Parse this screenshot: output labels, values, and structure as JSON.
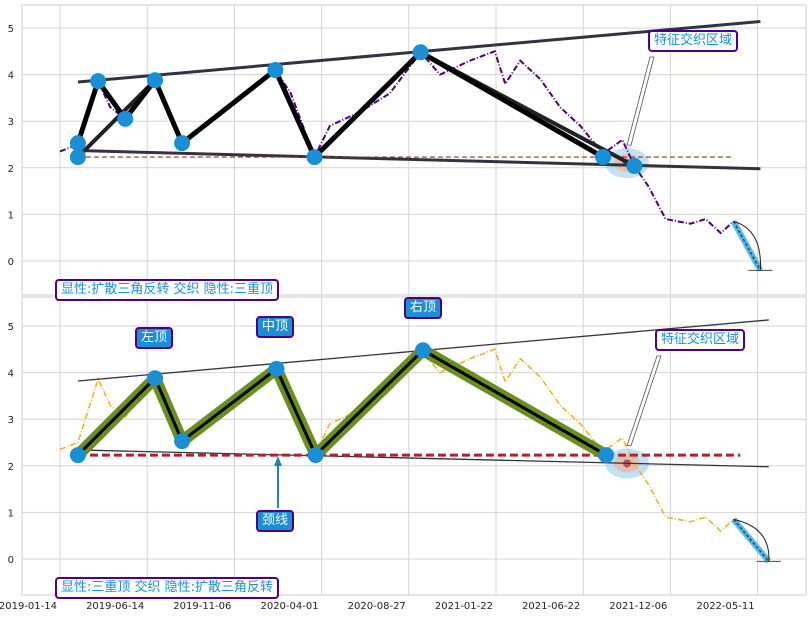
{
  "chart_data": [
    {
      "type": "line",
      "panel": "top",
      "ylim": [
        -0.2,
        5.5
      ],
      "yticks": [
        0,
        1,
        2,
        3,
        4,
        5
      ],
      "grid": true,
      "series_color": "#4b0082",
      "annotation_text": "显性:扩散三角反转 交织 隐性:三重顶",
      "zone_label": "特征交织区域",
      "price": [
        [
          "2019-01-14",
          2.35
        ],
        [
          "2019-02-14",
          2.5
        ],
        [
          "2019-03-21",
          3.86
        ],
        [
          "2019-04-11",
          3.3
        ],
        [
          "2019-05-07",
          3.05
        ],
        [
          "2019-06-27",
          3.88
        ],
        [
          "2019-08-11",
          2.53
        ],
        [
          "2019-09-27",
          3.0
        ],
        [
          "2019-11-16",
          3.5
        ],
        [
          "2020-01-14",
          4.1
        ],
        [
          "2020-02-09",
          3.6
        ],
        [
          "2020-03-20",
          2.23
        ],
        [
          "2020-04-15",
          2.9
        ],
        [
          "2020-06-05",
          3.2
        ],
        [
          "2020-07-26",
          3.6
        ],
        [
          "2020-09-16",
          4.48
        ],
        [
          "2020-10-19",
          4.0
        ],
        [
          "2020-12-09",
          4.3
        ],
        [
          "2021-01-20",
          4.5
        ],
        [
          "2021-02-07",
          3.8
        ],
        [
          "2021-03-05",
          4.3
        ],
        [
          "2021-04-09",
          3.9
        ],
        [
          "2021-05-13",
          3.3
        ],
        [
          "2021-06-17",
          2.9
        ],
        [
          "2021-07-30",
          2.3
        ],
        [
          "2021-09-05",
          2.6
        ],
        [
          "2021-09-28",
          2.04
        ],
        [
          "2021-10-25",
          1.6
        ],
        [
          "2021-11-27",
          0.9
        ],
        [
          "2022-01-11",
          0.8
        ],
        [
          "2022-02-07",
          0.9
        ],
        [
          "2022-03-06",
          0.6
        ],
        [
          "2022-03-29",
          0.85
        ]
      ],
      "pivots": [
        [
          "2019-02-14",
          2.53
        ],
        [
          "2019-02-14",
          2.23
        ],
        [
          "2019-03-21",
          3.86
        ],
        [
          "2019-05-07",
          3.05
        ],
        [
          "2019-06-27",
          3.88
        ],
        [
          "2019-08-11",
          2.53
        ],
        [
          "2020-01-14",
          4.1
        ],
        [
          "2020-03-20",
          2.23
        ],
        [
          "2020-09-16",
          4.48
        ],
        [
          "2021-07-30",
          2.23
        ],
        [
          "2021-09-28",
          2.04
        ]
      ],
      "pattern_path": [
        [
          "2019-02-14",
          2.53
        ],
        [
          "2019-03-21",
          3.86
        ],
        [
          "2019-05-07",
          3.05
        ],
        [
          "2019-06-27",
          3.88
        ],
        [
          "2019-08-11",
          2.53
        ],
        [
          "2020-01-14",
          4.1
        ],
        [
          "2020-03-20",
          2.23
        ],
        [
          "2020-09-16",
          4.48
        ],
        [
          "2021-07-30",
          2.23
        ]
      ],
      "extra_segments": [
        [
          [
            "2020-09-16",
            4.48
          ],
          [
            "2021-09-28",
            2.04
          ]
        ],
        [
          [
            "2019-02-14",
            2.23
          ],
          [
            "2019-06-27",
            3.88
          ]
        ]
      ],
      "upper_trend": [
        [
          "2019-02-14",
          3.84
        ],
        [
          "2022-05-16",
          5.14
        ]
      ],
      "lower_trend": [
        [
          "2019-02-14",
          2.37
        ],
        [
          "2022-05-16",
          1.98
        ]
      ],
      "neckline": [
        [
          "2019-02-14",
          2.23
        ],
        [
          "2022-03-29",
          2.23
        ]
      ],
      "projection": [
        [
          "2022-03-29",
          0.85
        ],
        [
          "2022-05-16",
          -0.2
        ]
      ],
      "zone_center": [
        "2021-09-14",
        2.1
      ]
    },
    {
      "type": "line",
      "panel": "bottom",
      "ylim": [
        -0.2,
        5.5
      ],
      "yticks": [
        0,
        1,
        2,
        3,
        4,
        5
      ],
      "grid": true,
      "series_color": "#f0b030",
      "annotation_text": "显性:三重顶 交织 隐性:扩散三角反转",
      "zone_label": "特征交织区域",
      "labels": {
        "left_top": "左顶",
        "middle_top": "中顶",
        "right_top": "右顶",
        "neckline": "颈线"
      },
      "xticks": [
        "2019-01-14",
        "2019-06-14",
        "2019-11-06",
        "2020-04-01",
        "2020-08-27",
        "2021-01-22",
        "2021-06-22",
        "2021-12-06",
        "2022-05-11"
      ],
      "pivots": [
        [
          "2019-02-14",
          2.23
        ],
        [
          "2019-06-27",
          3.88
        ],
        [
          "2019-08-11",
          2.53
        ],
        [
          "2020-01-16",
          4.08
        ],
        [
          "2020-03-22",
          2.23
        ],
        [
          "2020-09-20",
          4.48
        ],
        [
          "2021-08-05",
          2.23
        ]
      ],
      "upper_trend": [
        [
          "2019-02-14",
          3.82
        ],
        [
          "2022-05-31",
          5.13
        ]
      ],
      "lower_trend": [
        [
          "2019-02-14",
          2.34
        ],
        [
          "2022-05-31",
          1.98
        ]
      ],
      "neckline": [
        [
          "2019-02-14",
          2.23
        ],
        [
          "2022-04-10",
          2.23
        ]
      ],
      "projection": [
        [
          "2022-03-29",
          0.85
        ],
        [
          "2022-05-31",
          -0.05
        ]
      ],
      "zone_center": [
        "2021-09-14",
        2.05
      ]
    }
  ]
}
